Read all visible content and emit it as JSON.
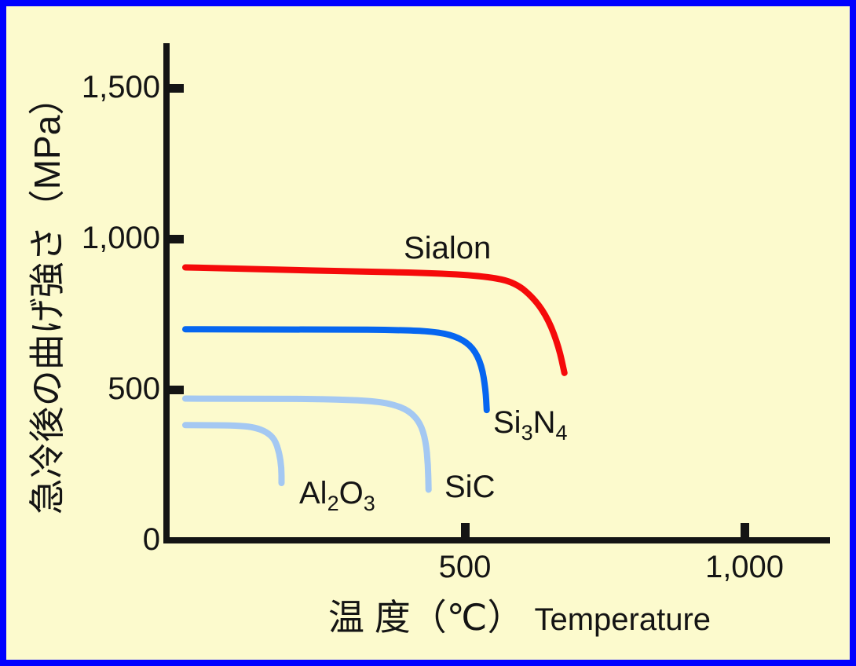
{
  "frame": {
    "border_color": "#0000FF",
    "background": "#FCFACD",
    "axis_color": "#141414",
    "text_color": "#141414"
  },
  "chart_data": {
    "type": "line",
    "title": "",
    "xlabel_jp": "温 度（℃）",
    "xlabel_en": "Temperature",
    "ylabel": "急冷後の曲げ強さ（MPa）",
    "x_unit": "°C",
    "y_unit": "MPa",
    "xlim": [
      0,
      1150
    ],
    "ylim": [
      0,
      1650
    ],
    "grid": false,
    "legend": "inline-labels",
    "x_ticks": [
      {
        "value": 500,
        "label": "500"
      },
      {
        "value": 1000,
        "label": "1,000"
      }
    ],
    "y_ticks": [
      {
        "value": 0,
        "label": "0"
      },
      {
        "value": 500,
        "label": "500"
      },
      {
        "value": 1000,
        "label": "1,000"
      },
      {
        "value": 1500,
        "label": "1,500"
      }
    ],
    "series": [
      {
        "name": "Al2O3",
        "color": "#A4C8F2",
        "points": [
          [
            0,
            382
          ],
          [
            60,
            382
          ],
          [
            100,
            380
          ],
          [
            125,
            374
          ],
          [
            145,
            360
          ],
          [
            160,
            335
          ],
          [
            168,
            290
          ],
          [
            172,
            240
          ],
          [
            172,
            190
          ]
        ]
      },
      {
        "name": "SiC",
        "color": "#A4C8F2",
        "points": [
          [
            0,
            470
          ],
          [
            150,
            470
          ],
          [
            250,
            468
          ],
          [
            330,
            463
          ],
          [
            370,
            452
          ],
          [
            400,
            430
          ],
          [
            420,
            390
          ],
          [
            430,
            330
          ],
          [
            434,
            250
          ],
          [
            435,
            168
          ]
        ]
      },
      {
        "name": "Si3N4",
        "color": "#0666F0",
        "points": [
          [
            0,
            700
          ],
          [
            250,
            700
          ],
          [
            400,
            697
          ],
          [
            455,
            690
          ],
          [
            490,
            672
          ],
          [
            515,
            638
          ],
          [
            530,
            580
          ],
          [
            537,
            500
          ],
          [
            539,
            432
          ]
        ]
      },
      {
        "name": "Sialon",
        "color": "#F50A0A",
        "points": [
          [
            0,
            905
          ],
          [
            150,
            898
          ],
          [
            300,
            892
          ],
          [
            450,
            886
          ],
          [
            540,
            875
          ],
          [
            590,
            855
          ],
          [
            625,
            800
          ],
          [
            650,
            730
          ],
          [
            668,
            640
          ],
          [
            678,
            555
          ]
        ]
      }
    ],
    "series_labels": {
      "sialon": {
        "text": "Sialon"
      },
      "si3n4": {
        "p1": "Si",
        "s1": "3",
        "p2": "N",
        "s2": "4"
      },
      "sic": {
        "text": "SiC"
      },
      "al2o3": {
        "p1": "Al",
        "s1": "2",
        "p2": "O",
        "s2": "3"
      }
    }
  }
}
